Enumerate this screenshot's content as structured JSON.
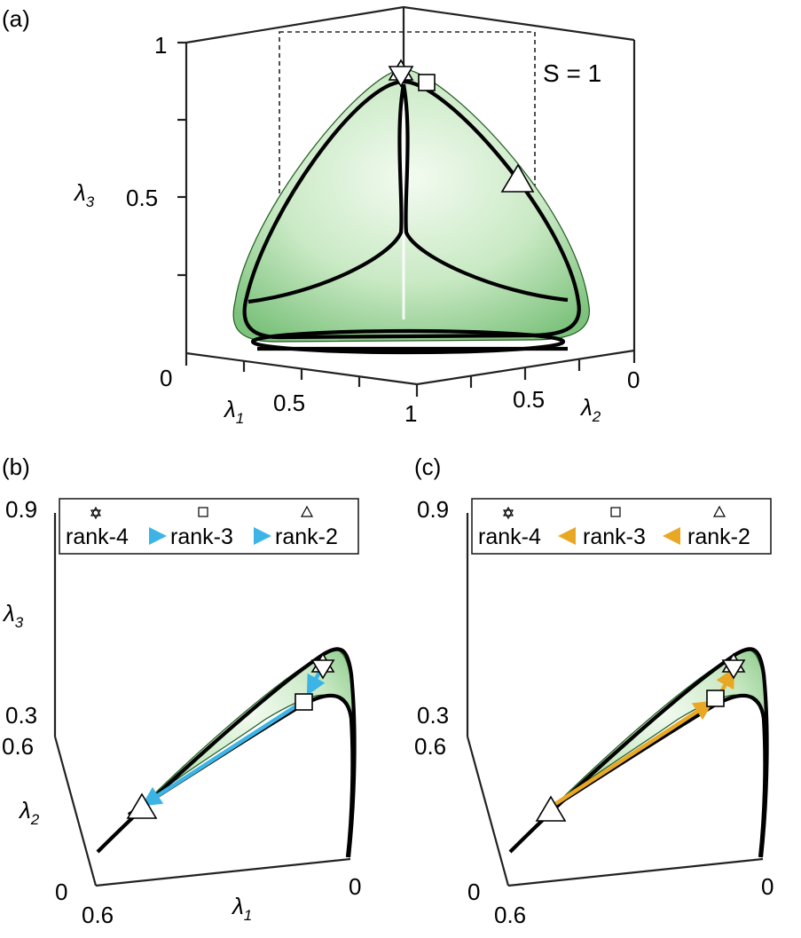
{
  "panels": {
    "a": {
      "label": "(a)",
      "annotation": "S = 1",
      "lambda3_ticks": [
        "1",
        "0.5"
      ],
      "lambda1_ticks": [
        "0",
        "0.5",
        "1"
      ],
      "lambda2_ticks": [
        "0.5",
        "0"
      ],
      "axis_symbols": {
        "l1": "λ",
        "l1_sub": "1",
        "l2": "λ",
        "l2_sub": "2",
        "l3": "λ",
        "l3_sub": "3"
      }
    },
    "b": {
      "label": "(b)",
      "legend": [
        "rank-4",
        "rank-3",
        "rank-2"
      ],
      "arrow_color": "#3cb4e6",
      "lambda3_ticks": [
        "0.9",
        "0.3"
      ],
      "lambda2_ticks": [
        "0.6",
        "0"
      ],
      "lambda1_ticks": [
        "0.6",
        "0"
      ],
      "axis_symbols": {
        "l1": "λ",
        "l1_sub": "1",
        "l2": "λ",
        "l2_sub": "2",
        "l3": "λ",
        "l3_sub": "3"
      }
    },
    "c": {
      "label": "(c)",
      "legend": [
        "rank-4",
        "rank-3",
        "rank-2"
      ],
      "arrow_color": "#e9a824",
      "lambda3_ticks": [
        "0.9",
        "0.3"
      ],
      "lambda2_ticks": [
        "0.6",
        "0"
      ],
      "lambda1_ticks": [
        "0.6",
        "0"
      ]
    }
  },
  "colors": {
    "surface_green": "#9fd59f",
    "axes": "#222222"
  }
}
